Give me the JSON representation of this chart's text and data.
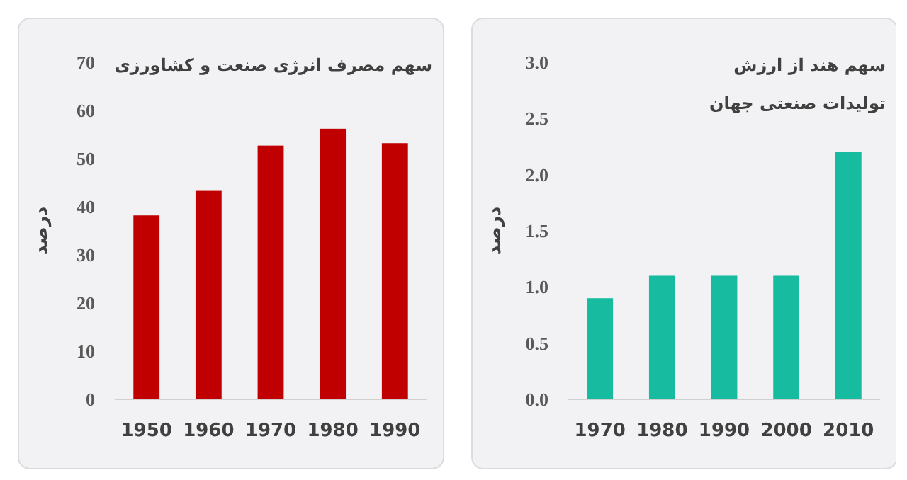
{
  "chart_data": [
    {
      "type": "bar",
      "title": "سهم مصرف انرژی صنعت و کشاورزی",
      "ylabel": "درصد",
      "categories": [
        "1950",
        "1960",
        "1970",
        "1980",
        "1990"
      ],
      "values": [
        38.2,
        43.3,
        52.7,
        56.2,
        53.2
      ],
      "color": "#c00000",
      "ylim": [
        0,
        70
      ],
      "yticks": [
        0,
        10,
        20,
        30,
        40,
        50,
        60,
        70
      ],
      "grid": false
    },
    {
      "type": "bar",
      "title": "سهم هند از ارزش\nتولیدات صنعتی جهان",
      "ylabel": "درصد",
      "categories": [
        "1970",
        "1980",
        "1990",
        "2000",
        "2010"
      ],
      "values": [
        0.9,
        1.1,
        1.1,
        1.1,
        2.2
      ],
      "color": "#17bca0",
      "ylim": [
        0,
        3
      ],
      "yticks": [
        {
          "value": 0,
          "label": "0.0"
        },
        {
          "value": 0.5,
          "label": "0.5"
        },
        {
          "value": 1,
          "label": "1.0"
        },
        {
          "value": 1.5,
          "label": "1.5"
        },
        {
          "value": 2,
          "label": "2.0"
        },
        {
          "value": 2.5,
          "label": "2.5"
        },
        {
          "value": 3,
          "label": "3.0"
        }
      ],
      "grid": false
    }
  ]
}
